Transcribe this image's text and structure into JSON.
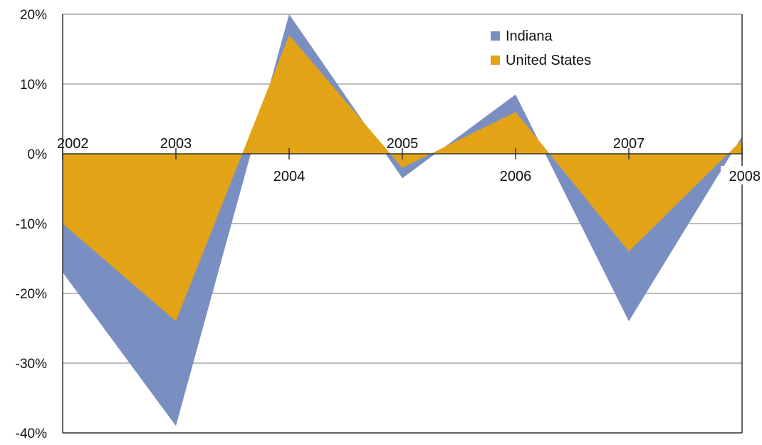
{
  "chart_data": {
    "type": "area",
    "categories": [
      "2002",
      "2003",
      "2004",
      "2005",
      "2006",
      "2007",
      "2008"
    ],
    "series": [
      {
        "name": "Indiana",
        "values": [
          -17,
          -39,
          20,
          -3.5,
          8.5,
          -24,
          2.5
        ],
        "color": "#7a8fc1"
      },
      {
        "name": "United States",
        "values": [
          -10,
          -24,
          17,
          -2,
          6,
          -14,
          2
        ],
        "color": "#e3a317"
      }
    ],
    "yticks": [
      "20%",
      "10%",
      "0%",
      "-10%",
      "-20%",
      "-30%",
      "-40%"
    ],
    "ylim": [
      -40,
      20
    ],
    "legend_position": "top-right",
    "grid": true,
    "gridline_color": "#a6a6a6",
    "axis_color": "#333333"
  }
}
